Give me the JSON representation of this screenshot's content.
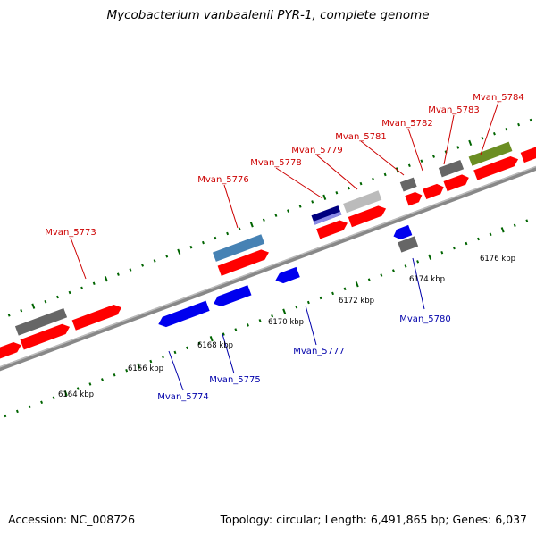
{
  "title": "Mycobacterium vanbaalenii PYR-1, complete genome",
  "footer": {
    "accession": "Accession: NC_008726",
    "summary": "Topology: circular; Length: 6,491,865 bp; Genes: 6,037"
  },
  "ruler_labels": [
    "6164 kbp",
    "6166 kbp",
    "6168 kbp",
    "6170 kbp",
    "6172 kbp",
    "6174 kbp",
    "6176 kbp"
  ],
  "colors": {
    "forward_cds": "#ff0000",
    "reverse_cds": "#0000ee",
    "other_gene": "#666666",
    "steelblue_gene": "#4682b4",
    "olive_gene": "#6b8e23",
    "light_gene": "#bbbbbb",
    "forward_label": "#cc0000",
    "reverse_label": "#0000aa",
    "backbone": "#888888",
    "tick": "#006400"
  },
  "gene_labels": {
    "forward": [
      "Mvan_5773",
      "Mvan_5776",
      "Mvan_5778",
      "Mvan_5779",
      "Mvan_5781",
      "Mvan_5782",
      "Mvan_5783",
      "Mvan_5784"
    ],
    "reverse": [
      "Mvan_5774",
      "Mvan_5775",
      "Mvan_5777",
      "Mvan_5780"
    ]
  }
}
